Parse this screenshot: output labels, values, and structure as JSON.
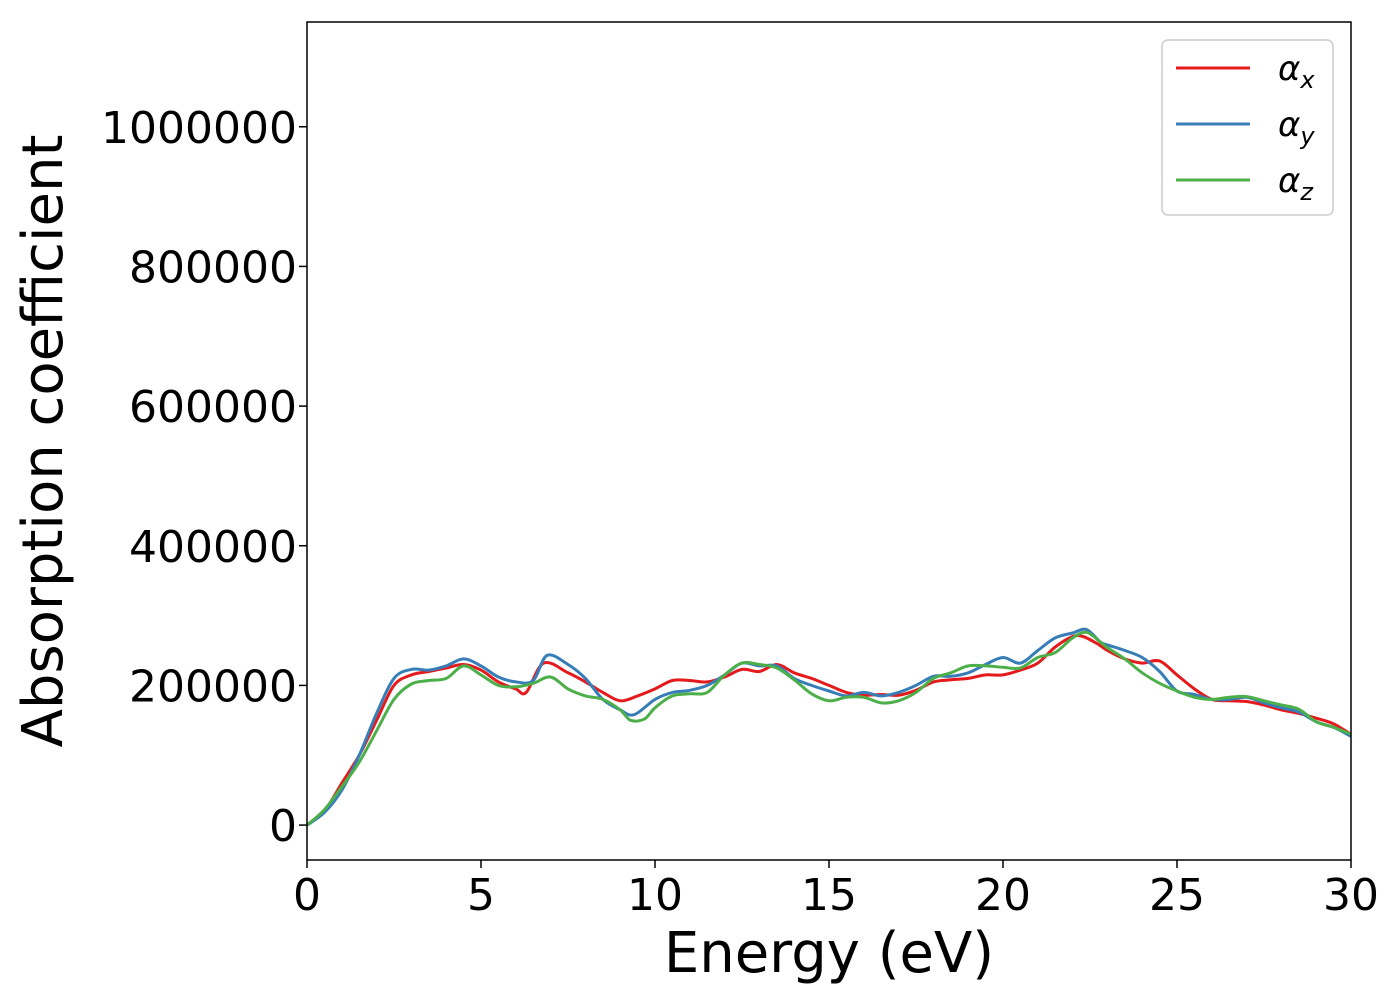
{
  "chart_data": {
    "type": "line",
    "title": "",
    "xlabel": "Energy (eV)",
    "ylabel": "Absorption coefficient",
    "xlim": [
      0,
      30
    ],
    "ylim": [
      -50000,
      1150000
    ],
    "xticks": [
      0,
      5,
      10,
      15,
      20,
      25,
      30
    ],
    "yticks": [
      0,
      200000,
      400000,
      600000,
      800000,
      1000000
    ],
    "grid": false,
    "legend_position": "top-right",
    "series": [
      {
        "name": "α",
        "subscript": "x",
        "color": "#e41a1c",
        "points": [
          [
            0,
            0
          ],
          [
            0.5,
            20000
          ],
          [
            1,
            60000
          ],
          [
            1.5,
            100000
          ],
          [
            2,
            150000
          ],
          [
            2.5,
            200000
          ],
          [
            3,
            215000
          ],
          [
            3.5,
            220000
          ],
          [
            4,
            225000
          ],
          [
            4.5,
            230000
          ],
          [
            5,
            222000
          ],
          [
            5.5,
            205000
          ],
          [
            6,
            195000
          ],
          [
            6.3,
            190000
          ],
          [
            6.8,
            232000
          ],
          [
            7.5,
            218000
          ],
          [
            8,
            205000
          ],
          [
            8.5,
            190000
          ],
          [
            9,
            178000
          ],
          [
            9.5,
            185000
          ],
          [
            10,
            195000
          ],
          [
            10.5,
            207000
          ],
          [
            11,
            207000
          ],
          [
            11.5,
            205000
          ],
          [
            12,
            212000
          ],
          [
            12.5,
            223000
          ],
          [
            13,
            220000
          ],
          [
            13.5,
            230000
          ],
          [
            14,
            218000
          ],
          [
            14.5,
            210000
          ],
          [
            15,
            200000
          ],
          [
            15.5,
            190000
          ],
          [
            16,
            186000
          ],
          [
            16.5,
            187000
          ],
          [
            17,
            186000
          ],
          [
            17.5,
            193000
          ],
          [
            18,
            205000
          ],
          [
            18.5,
            208000
          ],
          [
            19,
            210000
          ],
          [
            19.5,
            215000
          ],
          [
            20,
            215000
          ],
          [
            20.5,
            222000
          ],
          [
            21,
            232000
          ],
          [
            21.5,
            255000
          ],
          [
            22,
            270000
          ],
          [
            22.3,
            270000
          ],
          [
            22.7,
            260000
          ],
          [
            23,
            250000
          ],
          [
            23.5,
            238000
          ],
          [
            24,
            232000
          ],
          [
            24.5,
            235000
          ],
          [
            25,
            215000
          ],
          [
            25.5,
            195000
          ],
          [
            26,
            180000
          ],
          [
            26.5,
            178000
          ],
          [
            27,
            177000
          ],
          [
            27.5,
            172000
          ],
          [
            28,
            165000
          ],
          [
            28.5,
            160000
          ],
          [
            29,
            153000
          ],
          [
            29.5,
            145000
          ],
          [
            30,
            130000
          ]
        ]
      },
      {
        "name": "α",
        "subscript": "y",
        "color": "#377eb8",
        "points": [
          [
            0,
            0
          ],
          [
            0.5,
            18000
          ],
          [
            1,
            50000
          ],
          [
            1.5,
            100000
          ],
          [
            2,
            160000
          ],
          [
            2.5,
            210000
          ],
          [
            3,
            223000
          ],
          [
            3.5,
            222000
          ],
          [
            4,
            228000
          ],
          [
            4.5,
            238000
          ],
          [
            5,
            228000
          ],
          [
            5.5,
            212000
          ],
          [
            6,
            205000
          ],
          [
            6.5,
            207000
          ],
          [
            6.9,
            243000
          ],
          [
            7.5,
            230000
          ],
          [
            8,
            210000
          ],
          [
            8.5,
            180000
          ],
          [
            9,
            165000
          ],
          [
            9.4,
            158000
          ],
          [
            10,
            180000
          ],
          [
            10.5,
            190000
          ],
          [
            11,
            193000
          ],
          [
            11.5,
            200000
          ],
          [
            12,
            215000
          ],
          [
            12.5,
            232000
          ],
          [
            13,
            228000
          ],
          [
            13.5,
            228000
          ],
          [
            14,
            210000
          ],
          [
            14.5,
            200000
          ],
          [
            15,
            192000
          ],
          [
            15.5,
            185000
          ],
          [
            16,
            190000
          ],
          [
            16.5,
            185000
          ],
          [
            17,
            190000
          ],
          [
            17.5,
            200000
          ],
          [
            18,
            213000
          ],
          [
            18.5,
            213000
          ],
          [
            19,
            218000
          ],
          [
            19.5,
            230000
          ],
          [
            20,
            240000
          ],
          [
            20.5,
            232000
          ],
          [
            21,
            250000
          ],
          [
            21.5,
            268000
          ],
          [
            22,
            275000
          ],
          [
            22.4,
            280000
          ],
          [
            22.8,
            262000
          ],
          [
            23,
            258000
          ],
          [
            23.5,
            250000
          ],
          [
            24,
            240000
          ],
          [
            24.5,
            220000
          ],
          [
            25,
            192000
          ],
          [
            25.5,
            187000
          ],
          [
            26,
            180000
          ],
          [
            26.5,
            180000
          ],
          [
            27,
            183000
          ],
          [
            27.5,
            175000
          ],
          [
            28,
            168000
          ],
          [
            28.5,
            162000
          ],
          [
            29,
            148000
          ],
          [
            29.5,
            140000
          ],
          [
            30,
            127000
          ]
        ]
      },
      {
        "name": "α",
        "subscript": "z",
        "color": "#4daf4a",
        "points": [
          [
            0,
            0
          ],
          [
            0.5,
            22000
          ],
          [
            1,
            55000
          ],
          [
            1.5,
            90000
          ],
          [
            2,
            135000
          ],
          [
            2.5,
            180000
          ],
          [
            3,
            202000
          ],
          [
            3.5,
            207000
          ],
          [
            4,
            210000
          ],
          [
            4.5,
            228000
          ],
          [
            5,
            215000
          ],
          [
            5.5,
            200000
          ],
          [
            6,
            198000
          ],
          [
            6.5,
            203000
          ],
          [
            7,
            212000
          ],
          [
            7.5,
            195000
          ],
          [
            8,
            185000
          ],
          [
            8.5,
            180000
          ],
          [
            9,
            165000
          ],
          [
            9.3,
            150000
          ],
          [
            9.7,
            152000
          ],
          [
            10,
            168000
          ],
          [
            10.5,
            185000
          ],
          [
            11,
            188000
          ],
          [
            11.5,
            190000
          ],
          [
            12,
            215000
          ],
          [
            12.5,
            232000
          ],
          [
            13,
            230000
          ],
          [
            13.5,
            225000
          ],
          [
            14,
            208000
          ],
          [
            14.5,
            188000
          ],
          [
            15,
            178000
          ],
          [
            15.5,
            183000
          ],
          [
            16,
            183000
          ],
          [
            16.5,
            175000
          ],
          [
            17,
            178000
          ],
          [
            17.5,
            190000
          ],
          [
            18,
            210000
          ],
          [
            18.5,
            218000
          ],
          [
            19,
            228000
          ],
          [
            19.5,
            228000
          ],
          [
            20,
            226000
          ],
          [
            20.5,
            225000
          ],
          [
            21,
            240000
          ],
          [
            21.5,
            247000
          ],
          [
            22,
            268000
          ],
          [
            22.4,
            276000
          ],
          [
            22.8,
            262000
          ],
          [
            23,
            254000
          ],
          [
            23.5,
            238000
          ],
          [
            24,
            218000
          ],
          [
            24.5,
            203000
          ],
          [
            25,
            192000
          ],
          [
            25.5,
            183000
          ],
          [
            26,
            180000
          ],
          [
            26.5,
            183000
          ],
          [
            27,
            184000
          ],
          [
            27.5,
            178000
          ],
          [
            28,
            172000
          ],
          [
            28.5,
            166000
          ],
          [
            29,
            148000
          ],
          [
            29.5,
            140000
          ],
          [
            30,
            130000
          ]
        ]
      }
    ]
  }
}
